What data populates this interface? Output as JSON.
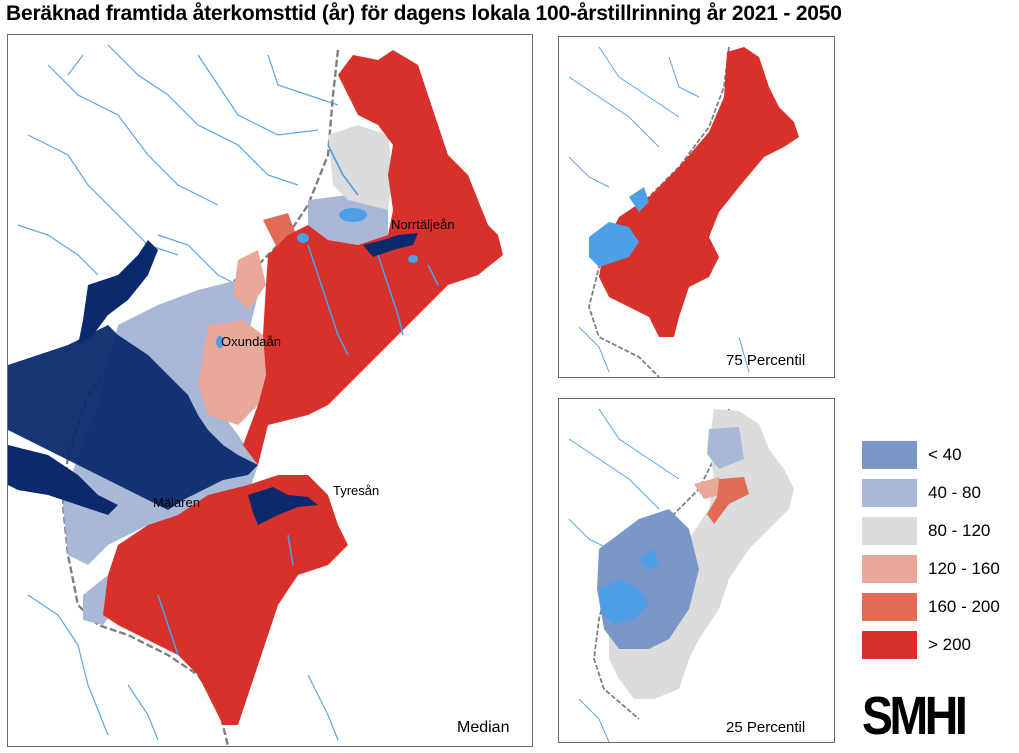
{
  "title": "Beräknad framtida återkomsttid (år) för dagens lokala 100-årstillrinning år 2021 - 2050",
  "maps": {
    "median": {
      "label": "Median",
      "places": [
        "Norrtäljeån",
        "Oxundaån",
        "Tyresån",
        "Mälaren"
      ]
    },
    "p75": {
      "label": "75 Percentil"
    },
    "p25": {
      "label": "25 Percentil"
    }
  },
  "legend": [
    {
      "label": "< 40",
      "color": "#7b97c9"
    },
    {
      "label": "40 - 80",
      "color": "#a8b8d6"
    },
    {
      "label": "80 - 120",
      "color": "#dcdcdc"
    },
    {
      "label": "120 - 160",
      "color": "#e8a89a"
    },
    {
      "label": "160 - 200",
      "color": "#e26b55"
    },
    {
      "label": "> 200",
      "color": "#d8302a"
    }
  ],
  "colors": {
    "water_lake": "#0b2a6e",
    "river": "#4d9fe6",
    "border": "#808080"
  },
  "logo": "SMHI"
}
